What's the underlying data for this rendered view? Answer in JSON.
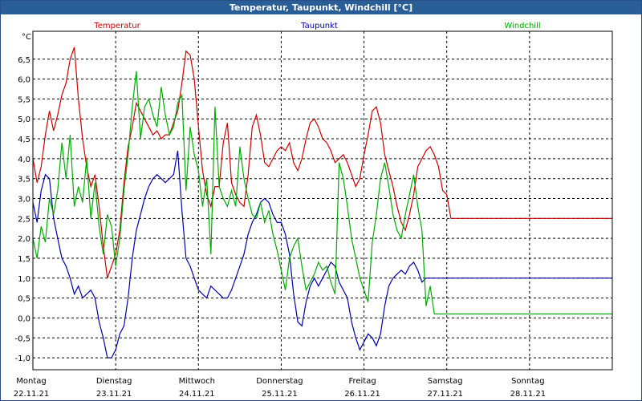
{
  "window": {
    "title": "Temperatur, Taupunkt, Windchill [°C]"
  },
  "chart_data": {
    "type": "line",
    "title": "Temperatur, Taupunkt, Windchill [°C]",
    "ylabel": "°C",
    "ylim": [
      -1.3,
      7.2
    ],
    "yticks": [
      -1.0,
      -0.5,
      0.0,
      0.5,
      1.0,
      1.5,
      2.0,
      2.5,
      3.0,
      3.5,
      4.0,
      4.5,
      5.0,
      5.5,
      6.0,
      6.5
    ],
    "ytick_labels": [
      "-1,0",
      "-0,5",
      "0,0",
      "0,5",
      "1,0",
      "1,5",
      "2,0",
      "2,5",
      "3,0",
      "3,5",
      "4,0",
      "4,5",
      "5,0",
      "5,5",
      "6,0",
      "6,5"
    ],
    "xlim": [
      0,
      7
    ],
    "xticks": [
      0,
      1,
      2,
      3,
      4,
      5,
      6
    ],
    "xtick_days": [
      "Montag",
      "Dienstag",
      "Mittwoch",
      "Donnerstag",
      "Freitag",
      "Samstag",
      "Sonntag"
    ],
    "xtick_dates": [
      "22.11.21",
      "23.11.21",
      "24.11.21",
      "25.11.21",
      "26.11.21",
      "27.11.21",
      "28.11.21"
    ],
    "grid": true,
    "legend_position": "top",
    "colors": {
      "temperatur": "#cc0000",
      "taupunkt": "#0000aa",
      "windchill": "#00aa00",
      "titlebar": "#2a5e97"
    },
    "series": [
      {
        "name": "Temperatur",
        "color": "#cc0000",
        "x": [
          0,
          0.05,
          0.1,
          0.15,
          0.2,
          0.25,
          0.3,
          0.35,
          0.4,
          0.45,
          0.5,
          0.55,
          0.6,
          0.65,
          0.7,
          0.75,
          0.8,
          0.85,
          0.9,
          0.95,
          1.0,
          1.05,
          1.1,
          1.15,
          1.2,
          1.25,
          1.3,
          1.35,
          1.4,
          1.45,
          1.5,
          1.55,
          1.6,
          1.65,
          1.7,
          1.75,
          1.8,
          1.85,
          1.9,
          1.95,
          2.0,
          2.05,
          2.1,
          2.15,
          2.2,
          2.25,
          2.3,
          2.35,
          2.4,
          2.45,
          2.5,
          2.55,
          2.6,
          2.65,
          2.7,
          2.75,
          2.8,
          2.85,
          2.9,
          2.95,
          3.0,
          3.05,
          3.1,
          3.15,
          3.2,
          3.25,
          3.3,
          3.35,
          3.4,
          3.45,
          3.5,
          3.55,
          3.6,
          3.65,
          3.7,
          3.75,
          3.8,
          3.85,
          3.9,
          3.95,
          4.0,
          4.05,
          4.1,
          4.15,
          4.2,
          4.25,
          4.3,
          4.35,
          4.4,
          4.45,
          4.5,
          4.55,
          4.6,
          4.65,
          4.7,
          4.75,
          4.8,
          4.85,
          4.9,
          4.95,
          5.0,
          5.05,
          5.1,
          5.15,
          5.2,
          5.25,
          5.3,
          5.35,
          5.4,
          5.45,
          5.5,
          5.55,
          5.6,
          5.65,
          5.7,
          5.75,
          5.8,
          5.85,
          5.9,
          5.95,
          6.0,
          6.05,
          6.1,
          6.15,
          6.2,
          6.25,
          6.3,
          6.35,
          6.4,
          6.45,
          6.5,
          6.55,
          6.6,
          6.65,
          6.7,
          6.75,
          6.8,
          6.85,
          6.9,
          6.95,
          7.0
        ],
        "values": [
          4.0,
          3.4,
          3.8,
          4.6,
          5.2,
          4.7,
          5.1,
          5.6,
          5.9,
          6.5,
          6.8,
          5.5,
          4.5,
          3.8,
          3.3,
          3.6,
          2.8,
          1.8,
          1.0,
          1.3,
          1.6,
          2.2,
          3.4,
          4.3,
          4.8,
          5.4,
          5.2,
          5.0,
          4.8,
          4.6,
          4.7,
          4.5,
          4.6,
          4.6,
          4.9,
          5.2,
          5.9,
          6.7,
          6.6,
          6.0,
          4.8,
          3.7,
          3.1,
          2.8,
          3.3,
          3.3,
          4.4,
          4.9,
          3.4,
          3.1,
          2.9,
          2.8,
          3.6,
          4.8,
          5.1,
          4.6,
          3.9,
          3.8,
          4.0,
          4.2,
          4.3,
          4.2,
          4.4,
          3.9,
          3.7,
          4.0,
          4.5,
          4.9,
          5.0,
          4.8,
          4.5,
          4.4,
          4.2,
          3.9,
          4.0,
          4.1,
          3.9,
          3.6,
          3.3,
          3.5,
          4.1,
          4.6,
          5.2,
          5.3,
          4.9,
          4.1,
          3.7,
          3.3,
          2.8,
          2.4,
          2.2,
          2.6,
          3.1,
          3.8,
          4.0,
          4.2,
          4.3,
          4.1,
          3.8,
          3.2,
          3.1,
          2.5,
          2.5,
          2.5,
          2.5,
          2.5,
          2.5,
          2.5,
          2.5,
          2.5,
          2.5,
          2.5,
          2.5,
          2.5,
          2.5,
          2.5,
          2.5,
          2.5,
          2.5,
          2.5,
          2.5,
          2.5,
          2.5,
          2.5,
          2.5,
          2.5,
          2.5,
          2.5,
          2.5,
          2.5,
          2.5,
          2.5,
          2.5,
          2.5,
          2.5,
          2.5,
          2.5,
          2.5,
          2.5,
          2.5,
          2.5
        ]
      },
      {
        "name": "Taupunkt",
        "color": "#0000aa",
        "x": [
          0,
          0.05,
          0.1,
          0.15,
          0.2,
          0.25,
          0.3,
          0.35,
          0.4,
          0.45,
          0.5,
          0.55,
          0.6,
          0.65,
          0.7,
          0.75,
          0.8,
          0.85,
          0.9,
          0.95,
          1.0,
          1.05,
          1.1,
          1.15,
          1.2,
          1.25,
          1.3,
          1.35,
          1.4,
          1.45,
          1.5,
          1.55,
          1.6,
          1.65,
          1.7,
          1.75,
          1.8,
          1.85,
          1.9,
          1.95,
          2.0,
          2.05,
          2.1,
          2.15,
          2.2,
          2.25,
          2.3,
          2.35,
          2.4,
          2.45,
          2.5,
          2.55,
          2.6,
          2.65,
          2.7,
          2.75,
          2.8,
          2.85,
          2.9,
          2.95,
          3.0,
          3.05,
          3.1,
          3.15,
          3.2,
          3.25,
          3.3,
          3.35,
          3.4,
          3.45,
          3.5,
          3.55,
          3.6,
          3.65,
          3.7,
          3.75,
          3.8,
          3.85,
          3.9,
          3.95,
          4.0,
          4.05,
          4.1,
          4.15,
          4.2,
          4.25,
          4.3,
          4.35,
          4.4,
          4.45,
          4.5,
          4.55,
          4.6,
          4.65,
          4.7,
          4.75,
          4.8,
          4.85,
          4.9,
          4.95,
          5.0,
          5.05,
          5.1,
          5.15,
          5.2,
          5.25,
          5.3,
          5.35,
          5.4,
          5.45,
          5.5,
          5.55,
          5.6,
          5.65,
          5.7,
          5.75,
          5.8,
          5.85,
          5.9,
          5.95,
          6.0,
          6.05,
          6.1,
          6.15,
          6.2,
          6.25,
          6.3,
          6.35,
          6.4,
          6.45,
          6.5,
          6.55,
          6.6,
          6.65,
          6.7,
          6.75,
          6.8,
          6.85,
          6.9,
          6.95,
          7.0
        ],
        "values": [
          2.9,
          2.4,
          3.2,
          3.6,
          3.5,
          2.5,
          2.0,
          1.5,
          1.3,
          1.0,
          0.6,
          0.8,
          0.5,
          0.6,
          0.7,
          0.5,
          -0.1,
          -0.5,
          -1.0,
          -1.0,
          -0.8,
          -0.4,
          -0.2,
          0.5,
          1.5,
          2.2,
          2.6,
          3.0,
          3.3,
          3.5,
          3.6,
          3.5,
          3.4,
          3.5,
          3.6,
          4.2,
          2.7,
          1.5,
          1.3,
          1.0,
          0.7,
          0.6,
          0.5,
          0.8,
          0.7,
          0.6,
          0.5,
          0.5,
          0.7,
          1.0,
          1.3,
          1.6,
          2.1,
          2.4,
          2.6,
          2.9,
          3.0,
          2.9,
          2.6,
          2.4,
          2.4,
          2.1,
          1.6,
          0.6,
          -0.1,
          -0.2,
          0.4,
          0.8,
          1.0,
          0.8,
          1.0,
          1.2,
          1.4,
          1.3,
          0.9,
          0.7,
          0.5,
          -0.1,
          -0.5,
          -0.8,
          -0.6,
          -0.4,
          -0.5,
          -0.7,
          -0.4,
          0.3,
          0.8,
          1.0,
          1.1,
          1.2,
          1.1,
          1.3,
          1.4,
          1.2,
          0.9,
          1.0,
          1.0,
          1.0,
          1.0,
          1.0,
          1.0,
          1.0,
          1.0,
          1.0,
          1.0,
          1.0,
          1.0,
          1.0,
          1.0,
          1.0,
          1.0,
          1.0,
          1.0,
          1.0,
          1.0,
          1.0,
          1.0,
          1.0,
          1.0,
          1.0,
          1.0,
          1.0,
          1.0,
          1.0,
          1.0,
          1.0,
          1.0,
          1.0,
          1.0,
          1.0,
          1.0,
          1.0,
          1.0,
          1.0,
          1.0,
          1.0,
          1.0,
          1.0,
          1.0,
          1.0,
          1.0
        ]
      },
      {
        "name": "Windchill",
        "color": "#00aa00",
        "x": [
          0,
          0.05,
          0.1,
          0.15,
          0.2,
          0.25,
          0.3,
          0.35,
          0.4,
          0.45,
          0.5,
          0.55,
          0.6,
          0.65,
          0.7,
          0.75,
          0.8,
          0.85,
          0.9,
          0.95,
          1.0,
          1.05,
          1.1,
          1.15,
          1.2,
          1.25,
          1.3,
          1.35,
          1.4,
          1.45,
          1.5,
          1.55,
          1.6,
          1.65,
          1.7,
          1.75,
          1.8,
          1.85,
          1.9,
          1.95,
          2.0,
          2.05,
          2.1,
          2.15,
          2.2,
          2.25,
          2.3,
          2.35,
          2.4,
          2.45,
          2.5,
          2.55,
          2.6,
          2.65,
          2.7,
          2.75,
          2.8,
          2.85,
          2.9,
          2.95,
          3.0,
          3.05,
          3.1,
          3.15,
          3.2,
          3.25,
          3.3,
          3.35,
          3.4,
          3.45,
          3.5,
          3.55,
          3.6,
          3.65,
          3.7,
          3.75,
          3.8,
          3.85,
          3.9,
          3.95,
          4.0,
          4.05,
          4.1,
          4.15,
          4.2,
          4.25,
          4.3,
          4.35,
          4.4,
          4.45,
          4.5,
          4.55,
          4.6,
          4.65,
          4.7,
          4.75,
          4.8,
          4.85,
          4.9,
          4.95,
          5.0,
          5.05,
          5.1,
          5.15,
          5.2,
          5.25,
          5.3,
          5.35,
          5.4,
          5.45,
          5.5,
          5.55,
          5.6,
          5.65,
          5.7,
          5.75,
          5.8,
          5.85,
          5.9,
          5.95,
          6.0,
          6.05,
          6.1,
          6.15,
          6.2,
          6.25,
          6.3,
          6.35,
          6.4,
          6.45,
          6.5,
          6.55,
          6.6,
          6.65,
          6.7,
          6.75,
          6.8,
          6.85,
          6.9,
          6.95,
          7.0
        ],
        "values": [
          2.0,
          1.5,
          2.3,
          1.9,
          3.0,
          2.6,
          3.2,
          4.4,
          3.5,
          4.6,
          2.8,
          3.3,
          2.9,
          4.0,
          2.5,
          3.4,
          2.3,
          1.6,
          2.6,
          2.3,
          1.3,
          2.0,
          3.2,
          4.1,
          5.3,
          6.2,
          4.5,
          5.3,
          5.5,
          5.1,
          4.8,
          5.8,
          5.1,
          4.6,
          4.8,
          5.4,
          5.6,
          3.2,
          4.8,
          4.1,
          3.7,
          2.8,
          3.5,
          1.6,
          5.3,
          3.3,
          3.0,
          2.8,
          3.2,
          2.8,
          4.3,
          3.5,
          3.0,
          2.6,
          2.5,
          2.9,
          2.4,
          2.7,
          2.1,
          1.7,
          1.2,
          0.7,
          1.5,
          1.8,
          2.0,
          1.3,
          0.7,
          0.9,
          1.1,
          1.4,
          1.2,
          1.3,
          0.9,
          0.6,
          3.9,
          3.5,
          2.8,
          2.0,
          1.5,
          1.0,
          0.7,
          0.4,
          1.9,
          2.6,
          3.5,
          3.9,
          3.3,
          2.6,
          2.2,
          2.0,
          2.6,
          3.1,
          3.6,
          2.8,
          2.2,
          0.3,
          0.8,
          0.1,
          0.1,
          0.1,
          0.1,
          0.1,
          0.1,
          0.1,
          0.1,
          0.1,
          0.1,
          0.1,
          0.1,
          0.1,
          0.1,
          0.1,
          0.1,
          0.1,
          0.1,
          0.1,
          0.1,
          0.1,
          0.1,
          0.1,
          0.1,
          0.1,
          0.1,
          0.1,
          0.1,
          0.1,
          0.1,
          0.1,
          0.1,
          0.1,
          0.1,
          0.1,
          0.1,
          0.1,
          0.1,
          0.1,
          0.1,
          0.1,
          0.1,
          0.1,
          0.1
        ]
      }
    ]
  }
}
